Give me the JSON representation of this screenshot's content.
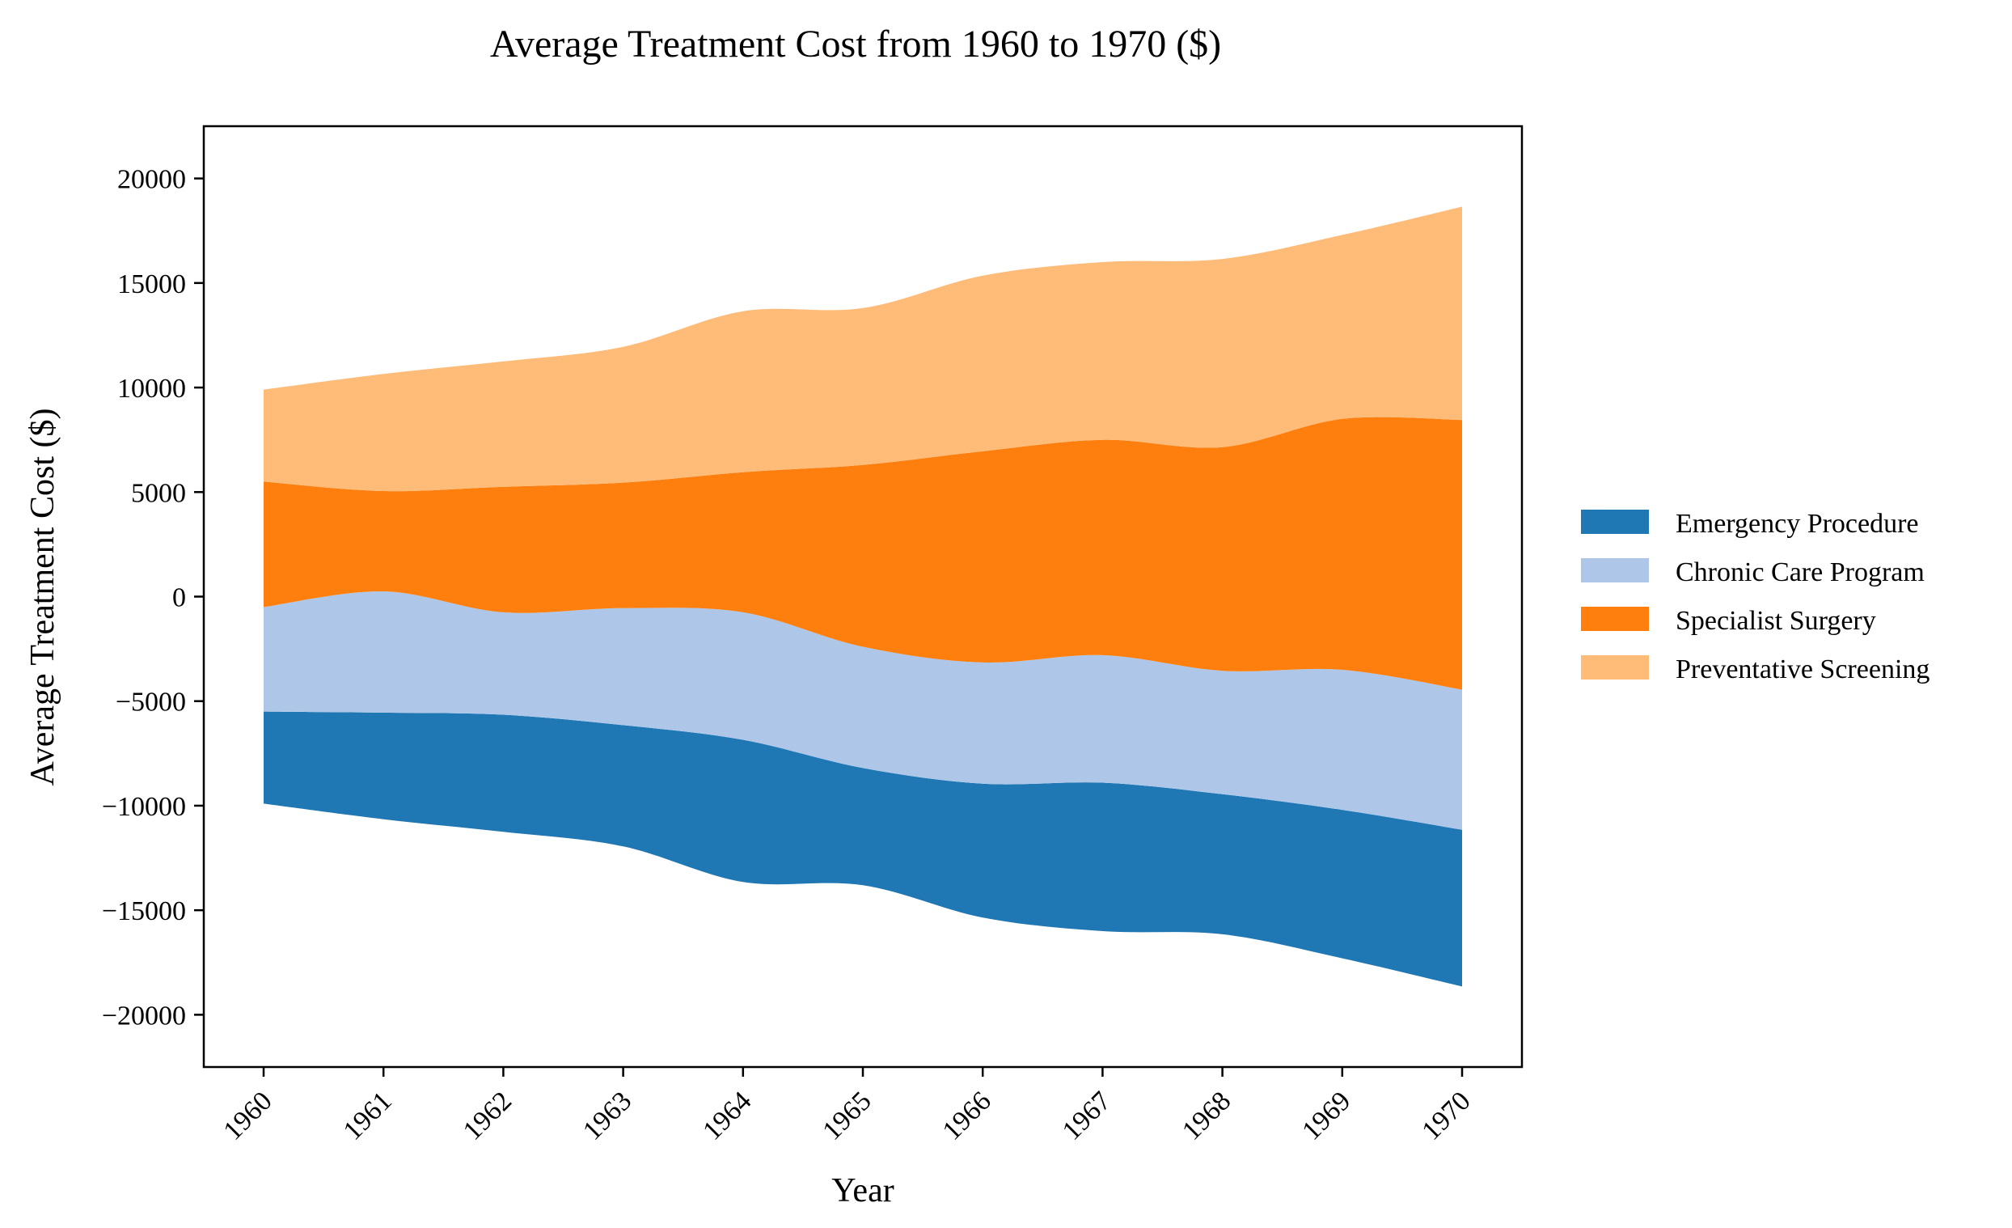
{
  "chart_data": {
    "type": "area",
    "subtype": "streamgraph",
    "title": "Average Treatment Cost from 1960 to 1970 ($)",
    "xlabel": "Year",
    "ylabel": "Average Treatment Cost ($)",
    "x": [
      "1960",
      "1961",
      "1962",
      "1963",
      "1964",
      "1965",
      "1966",
      "1967",
      "1968",
      "1969",
      "1970"
    ],
    "ylim": [
      -22500,
      22500
    ],
    "yticks": [
      -20000,
      -15000,
      -10000,
      -5000,
      0,
      5000,
      10000,
      15000,
      20000
    ],
    "ytick_labels": [
      "−20000",
      "−15000",
      "−10000",
      "−5000",
      "0",
      "5000",
      "10000",
      "15000",
      "20000"
    ],
    "baseline": "symmetric",
    "grid": false,
    "legend_position": "right",
    "series": [
      {
        "name": "Emergency Procedure",
        "color": "#1f77b4",
        "values": [
          4400,
          5100,
          5600,
          5800,
          6800,
          5600,
          6400,
          7100,
          6700,
          7100,
          7500
        ]
      },
      {
        "name": "Chronic Care Program",
        "color": "#aec7e8",
        "values": [
          5000,
          5800,
          4900,
          5600,
          6100,
          5800,
          5800,
          6100,
          5900,
          6700,
          6700
        ]
      },
      {
        "name": "Specialist Surgery",
        "color": "#ff7f0e",
        "values": [
          6000,
          4800,
          6000,
          6000,
          6700,
          8700,
          10100,
          10300,
          10700,
          12000,
          12900
        ]
      },
      {
        "name": "Preventative Screening",
        "color": "#ffbb78",
        "values": [
          4400,
          5600,
          6000,
          6500,
          7700,
          7500,
          8400,
          8500,
          9000,
          8800,
          10200
        ]
      }
    ]
  }
}
